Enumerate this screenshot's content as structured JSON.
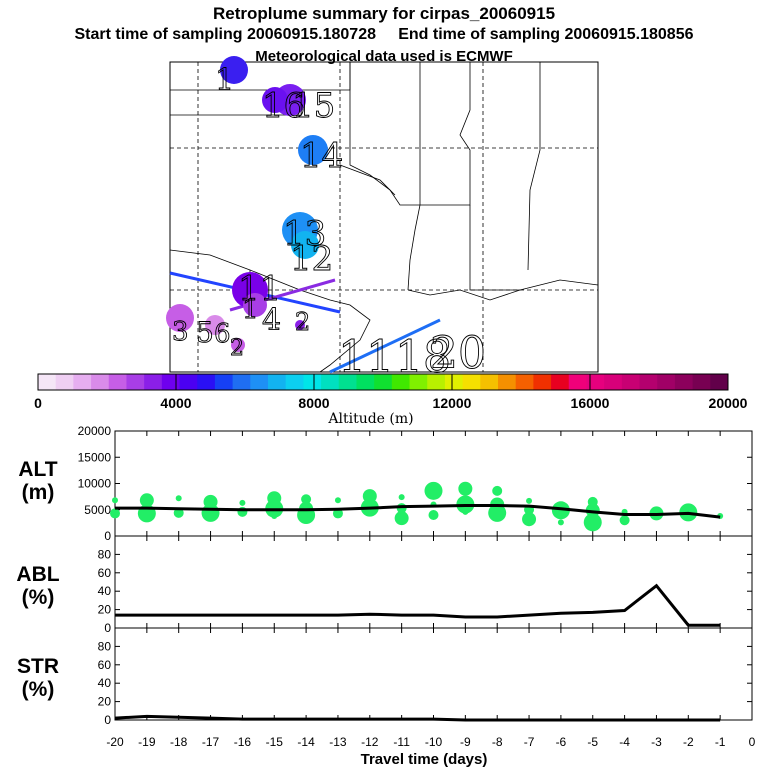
{
  "header": {
    "title": "Retroplume summary for cirpas_20060915",
    "start_label": "Start time of sampling 20060915.180728",
    "end_label": "End time of sampling 20060915.180856",
    "met_label": "Meteorological data used is ECMWF"
  },
  "colors": {
    "scale": [
      "#f5e6f7",
      "#efcff3",
      "#e6aef0",
      "#d98be9",
      "#c65ee6",
      "#a83ee6",
      "#8b1fe8",
      "#6f00ee",
      "#4b00f2",
      "#2a10f5",
      "#1640f5",
      "#1f6ef2",
      "#1e90f5",
      "#12b3f0",
      "#0ccff0",
      "#00e5e8",
      "#00e0c0",
      "#00e090",
      "#00e060",
      "#10e030",
      "#40e800",
      "#80f000",
      "#b8f000",
      "#e0f000",
      "#f5e000",
      "#f5c000",
      "#f59000",
      "#f56000",
      "#f03000",
      "#e80020",
      "#f0007a",
      "#e6007e",
      "#d8007a",
      "#c80073",
      "#b4006e",
      "#a00066",
      "#8c005c",
      "#780052",
      "#62004a"
    ],
    "curve": "#000000",
    "alt_dots": "#22ee66"
  },
  "colorbar": {
    "tick_labels": [
      "0",
      "4000",
      "8000",
      "12000",
      "16000",
      "20000"
    ],
    "title": "Altitude (m)"
  },
  "map": {
    "labels": [
      "1",
      "16",
      "15",
      "14",
      "13",
      "12",
      "11",
      "3",
      "5",
      "6",
      "2",
      "4",
      "1",
      "2",
      "11",
      "18",
      "20"
    ]
  },
  "chart_data": [
    {
      "type": "line",
      "id": "ALT",
      "ylabel_line1": "ALT",
      "ylabel_line2": "(m)",
      "ylim": [
        0,
        20000
      ],
      "yticks": [
        "0",
        "5000",
        "10000",
        "15000",
        "20000"
      ],
      "x": [
        -20,
        -19,
        -18,
        -17,
        -16,
        -15,
        -14,
        -13,
        -12,
        -11,
        -10,
        -9,
        -8,
        -7,
        -6,
        -5,
        -4,
        -3,
        -2,
        -1
      ],
      "values": [
        5300,
        5300,
        5200,
        5100,
        5000,
        5000,
        5000,
        5100,
        5300,
        5600,
        5700,
        5800,
        5800,
        5700,
        5200,
        4600,
        4100,
        4100,
        4300,
        3600
      ],
      "scatter_points": [
        [
          -20,
          6800
        ],
        [
          -20,
          4300
        ],
        [
          -19,
          6800
        ],
        [
          -19,
          4300
        ],
        [
          -18,
          7200
        ],
        [
          -18,
          4400
        ],
        [
          -17,
          6500
        ],
        [
          -17,
          4400
        ],
        [
          -16,
          6300
        ],
        [
          -16,
          4600
        ],
        [
          -15,
          7200
        ],
        [
          -15,
          5200
        ],
        [
          -15,
          3800
        ],
        [
          -14,
          7000
        ],
        [
          -14,
          5200
        ],
        [
          -14,
          4000
        ],
        [
          -13,
          6800
        ],
        [
          -13,
          4300
        ],
        [
          -12,
          7600
        ],
        [
          -12,
          5400
        ],
        [
          -11,
          7400
        ],
        [
          -11,
          5300
        ],
        [
          -11,
          3400
        ],
        [
          -10,
          8600
        ],
        [
          -10,
          6000
        ],
        [
          -10,
          4000
        ],
        [
          -9,
          9000
        ],
        [
          -9,
          6000
        ],
        [
          -9,
          4600
        ],
        [
          -8,
          8600
        ],
        [
          -8,
          6000
        ],
        [
          -8,
          4400
        ],
        [
          -7,
          6700
        ],
        [
          -7,
          5000
        ],
        [
          -7,
          3200
        ],
        [
          -6,
          4900
        ],
        [
          -6,
          2600
        ],
        [
          -5,
          6500
        ],
        [
          -5,
          4900
        ],
        [
          -5,
          2600
        ],
        [
          -4,
          4600
        ],
        [
          -4,
          3000
        ],
        [
          -3,
          4300
        ],
        [
          -2,
          4500
        ],
        [
          -1,
          3800
        ]
      ]
    },
    {
      "type": "line",
      "id": "ABL",
      "ylabel_line1": "ABL",
      "ylabel_line2": "(%)",
      "ylim": [
        0,
        100
      ],
      "yticks": [
        "0",
        "20",
        "40",
        "60",
        "80"
      ],
      "x": [
        -20,
        -19,
        -18,
        -17,
        -16,
        -15,
        -14,
        -13,
        -12,
        -11,
        -10,
        -9,
        -8,
        -7,
        -6,
        -5,
        -4,
        -3,
        -2,
        -1
      ],
      "values": [
        14,
        14,
        14,
        14,
        14,
        14,
        14,
        14,
        15,
        14,
        14,
        12,
        12,
        14,
        16,
        17,
        19,
        46,
        3,
        3
      ]
    },
    {
      "type": "line",
      "id": "STR",
      "ylabel_line1": "STR",
      "ylabel_line2": "(%)",
      "ylim": [
        0,
        100
      ],
      "yticks": [
        "0",
        "20",
        "40",
        "60",
        "80"
      ],
      "x": [
        -20,
        -19,
        -18,
        -17,
        -16,
        -15,
        -14,
        -13,
        -12,
        -11,
        -10,
        -9,
        -8,
        -7,
        -6,
        -5,
        -4,
        -3,
        -2,
        -1
      ],
      "values": [
        2,
        4,
        3,
        2,
        1,
        1,
        1,
        1,
        1,
        1,
        1,
        0,
        0,
        0,
        0,
        0,
        0,
        0,
        0,
        0
      ]
    }
  ],
  "xaxis": {
    "ticks": [
      "-20",
      "-19",
      "-18",
      "-17",
      "-16",
      "-15",
      "-14",
      "-13",
      "-12",
      "-11",
      "-10",
      "-9",
      "-8",
      "-7",
      "-6",
      "-5",
      "-4",
      "-3",
      "-2",
      "-1",
      "0"
    ],
    "label": "Travel time (days)"
  }
}
